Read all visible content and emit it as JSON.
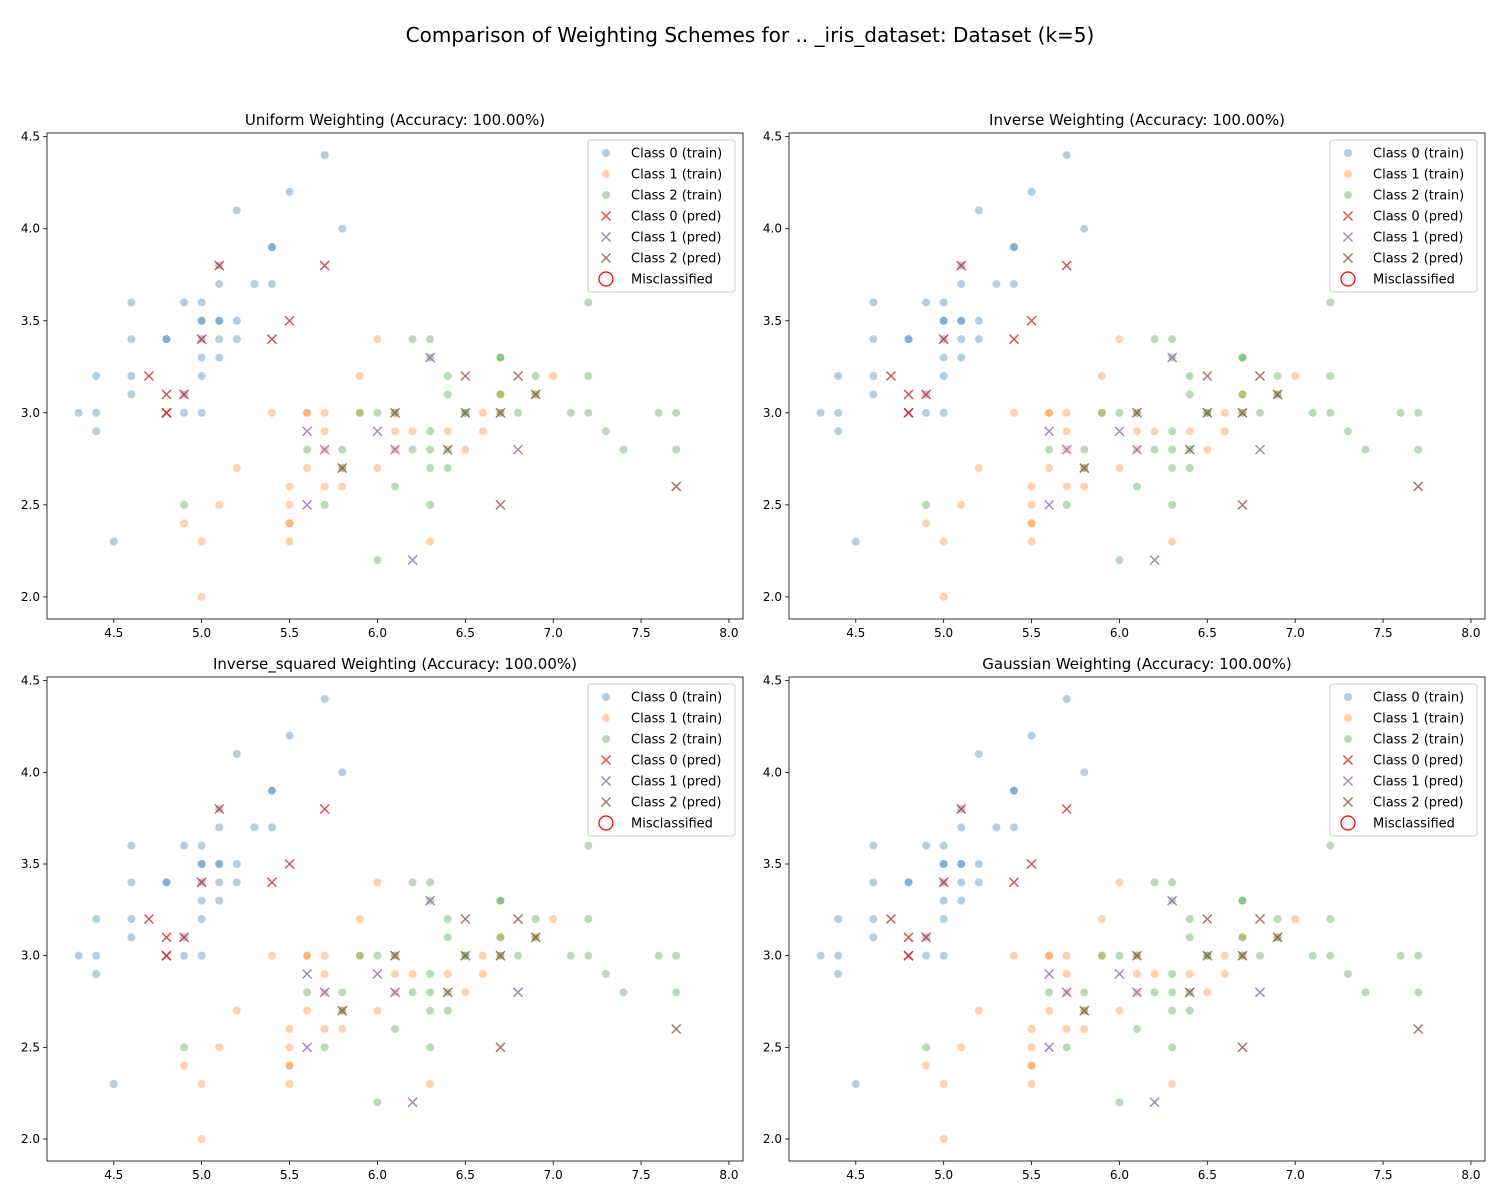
{
  "figure": {
    "suptitle": "Comparison of Weighting Schemes for .. _iris_dataset: Dataset (k=5)"
  },
  "legend": {
    "placement": "upper right",
    "entries": [
      {
        "label": "Class 0 (train)",
        "marker": "circle",
        "color": "#1f77b4"
      },
      {
        "label": "Class 1 (train)",
        "marker": "circle",
        "color": "#ff7f0e"
      },
      {
        "label": "Class 2 (train)",
        "marker": "circle",
        "color": "#2ca02c"
      },
      {
        "label": "Class 0 (pred)",
        "marker": "x",
        "color": "#d62728"
      },
      {
        "label": "Class 1 (pred)",
        "marker": "x",
        "color": "#9467bd"
      },
      {
        "label": "Class 2 (pred)",
        "marker": "x",
        "color": "#8c564b"
      },
      {
        "label": "Misclassified",
        "marker": "ring",
        "color": "#ff0000"
      }
    ]
  },
  "chart_data": {
    "type": "scatter",
    "xlim": [
      4.12,
      8.08
    ],
    "ylim": [
      1.88,
      4.52
    ],
    "xticks": [
      "4.5",
      "5.0",
      "5.5",
      "6.0",
      "6.5",
      "7.0",
      "7.5",
      "8.0"
    ],
    "yticks": [
      "2.0",
      "2.5",
      "3.0",
      "3.5",
      "4.0",
      "4.5"
    ],
    "grid": false,
    "panels": [
      {
        "title": "Uniform Weighting (Accuracy: 100.00%)"
      },
      {
        "title": "Inverse Weighting (Accuracy: 100.00%)"
      },
      {
        "title": "Inverse_squared Weighting (Accuracy: 100.00%)"
      },
      {
        "title": "Gaussian Weighting (Accuracy: 100.00%)"
      }
    ],
    "train_series": [
      {
        "name": "Class 0 (train)",
        "color": "#1f77b4",
        "points": [
          [
            4.3,
            3.0
          ],
          [
            4.4,
            3.0
          ],
          [
            4.4,
            2.9
          ],
          [
            4.4,
            3.2
          ],
          [
            4.5,
            2.3
          ],
          [
            4.6,
            3.1
          ],
          [
            4.6,
            3.2
          ],
          [
            4.6,
            3.4
          ],
          [
            4.6,
            3.6
          ],
          [
            4.8,
            3.4
          ],
          [
            4.8,
            3.4
          ],
          [
            4.9,
            3.0
          ],
          [
            4.9,
            3.1
          ],
          [
            4.9,
            3.6
          ],
          [
            5.0,
            3.0
          ],
          [
            5.0,
            3.2
          ],
          [
            5.0,
            3.3
          ],
          [
            5.0,
            3.4
          ],
          [
            5.0,
            3.5
          ],
          [
            5.0,
            3.5
          ],
          [
            5.0,
            3.6
          ],
          [
            5.1,
            3.3
          ],
          [
            5.1,
            3.4
          ],
          [
            5.1,
            3.5
          ],
          [
            5.1,
            3.5
          ],
          [
            5.1,
            3.7
          ],
          [
            5.1,
            3.8
          ],
          [
            5.2,
            3.4
          ],
          [
            5.2,
            3.5
          ],
          [
            5.2,
            4.1
          ],
          [
            5.3,
            3.7
          ],
          [
            5.4,
            3.7
          ],
          [
            5.4,
            3.9
          ],
          [
            5.4,
            3.9
          ],
          [
            5.5,
            4.2
          ],
          [
            5.7,
            4.4
          ],
          [
            5.8,
            4.0
          ]
        ]
      },
      {
        "name": "Class 1 (train)",
        "color": "#ff7f0e",
        "points": [
          [
            4.9,
            2.4
          ],
          [
            5.0,
            2.0
          ],
          [
            5.0,
            2.3
          ],
          [
            5.1,
            2.5
          ],
          [
            5.2,
            2.7
          ],
          [
            5.4,
            3.0
          ],
          [
            5.5,
            2.3
          ],
          [
            5.5,
            2.4
          ],
          [
            5.5,
            2.4
          ],
          [
            5.5,
            2.5
          ],
          [
            5.5,
            2.6
          ],
          [
            5.6,
            2.7
          ],
          [
            5.6,
            3.0
          ],
          [
            5.6,
            3.0
          ],
          [
            5.7,
            2.6
          ],
          [
            5.7,
            2.8
          ],
          [
            5.7,
            2.9
          ],
          [
            5.7,
            3.0
          ],
          [
            5.8,
            2.6
          ],
          [
            5.8,
            2.7
          ],
          [
            5.9,
            3.0
          ],
          [
            5.9,
            3.2
          ],
          [
            6.0,
            2.7
          ],
          [
            6.0,
            3.4
          ],
          [
            6.1,
            2.8
          ],
          [
            6.1,
            2.9
          ],
          [
            6.1,
            3.0
          ],
          [
            6.2,
            2.9
          ],
          [
            6.3,
            2.3
          ],
          [
            6.4,
            2.9
          ],
          [
            6.5,
            2.8
          ],
          [
            6.6,
            2.9
          ],
          [
            6.6,
            3.0
          ],
          [
            6.7,
            3.0
          ],
          [
            6.7,
            3.1
          ],
          [
            6.9,
            3.1
          ],
          [
            7.0,
            3.2
          ]
        ]
      },
      {
        "name": "Class 2 (train)",
        "color": "#2ca02c",
        "points": [
          [
            4.9,
            2.5
          ],
          [
            5.6,
            2.8
          ],
          [
            5.7,
            2.5
          ],
          [
            5.8,
            2.7
          ],
          [
            5.8,
            2.8
          ],
          [
            5.9,
            3.0
          ],
          [
            6.0,
            2.2
          ],
          [
            6.0,
            3.0
          ],
          [
            6.1,
            2.6
          ],
          [
            6.1,
            3.0
          ],
          [
            6.2,
            2.8
          ],
          [
            6.2,
            3.4
          ],
          [
            6.3,
            2.5
          ],
          [
            6.3,
            2.7
          ],
          [
            6.3,
            2.8
          ],
          [
            6.3,
            2.9
          ],
          [
            6.3,
            3.3
          ],
          [
            6.3,
            3.4
          ],
          [
            6.4,
            2.7
          ],
          [
            6.4,
            2.8
          ],
          [
            6.4,
            3.1
          ],
          [
            6.4,
            3.2
          ],
          [
            6.5,
            3.0
          ],
          [
            6.5,
            3.0
          ],
          [
            6.7,
            3.0
          ],
          [
            6.7,
            3.1
          ],
          [
            6.7,
            3.3
          ],
          [
            6.7,
            3.3
          ],
          [
            6.8,
            3.0
          ],
          [
            6.9,
            3.1
          ],
          [
            6.9,
            3.2
          ],
          [
            7.1,
            3.0
          ],
          [
            7.2,
            3.0
          ],
          [
            7.2,
            3.2
          ],
          [
            7.2,
            3.6
          ],
          [
            7.3,
            2.9
          ],
          [
            7.4,
            2.8
          ],
          [
            7.6,
            3.0
          ],
          [
            7.7,
            2.8
          ],
          [
            7.7,
            3.0
          ]
        ]
      }
    ],
    "pred_series": [
      {
        "name": "Class 0 (pred)",
        "color": "#d62728",
        "points": [
          [
            4.7,
            3.2
          ],
          [
            4.8,
            3.0
          ],
          [
            4.8,
            3.0
          ],
          [
            4.8,
            3.1
          ],
          [
            4.9,
            3.1
          ],
          [
            5.0,
            3.4
          ],
          [
            5.1,
            3.8
          ],
          [
            5.4,
            3.4
          ],
          [
            5.5,
            3.5
          ],
          [
            5.7,
            3.8
          ]
        ]
      },
      {
        "name": "Class 1 (pred)",
        "color": "#9467bd",
        "points": [
          [
            5.6,
            2.5
          ],
          [
            5.6,
            2.9
          ],
          [
            5.7,
            2.8
          ],
          [
            6.0,
            2.9
          ],
          [
            6.1,
            2.8
          ],
          [
            6.2,
            2.2
          ],
          [
            6.3,
            3.3
          ],
          [
            6.8,
            2.8
          ]
        ]
      },
      {
        "name": "Class 2 (pred)",
        "color": "#8c564b",
        "points": [
          [
            5.8,
            2.7
          ],
          [
            6.1,
            3.0
          ],
          [
            6.4,
            2.8
          ],
          [
            6.5,
            3.0
          ],
          [
            6.5,
            3.2
          ],
          [
            6.7,
            2.5
          ],
          [
            6.7,
            3.0
          ],
          [
            6.8,
            3.2
          ],
          [
            6.9,
            3.1
          ],
          [
            7.7,
            2.6
          ]
        ]
      }
    ]
  }
}
